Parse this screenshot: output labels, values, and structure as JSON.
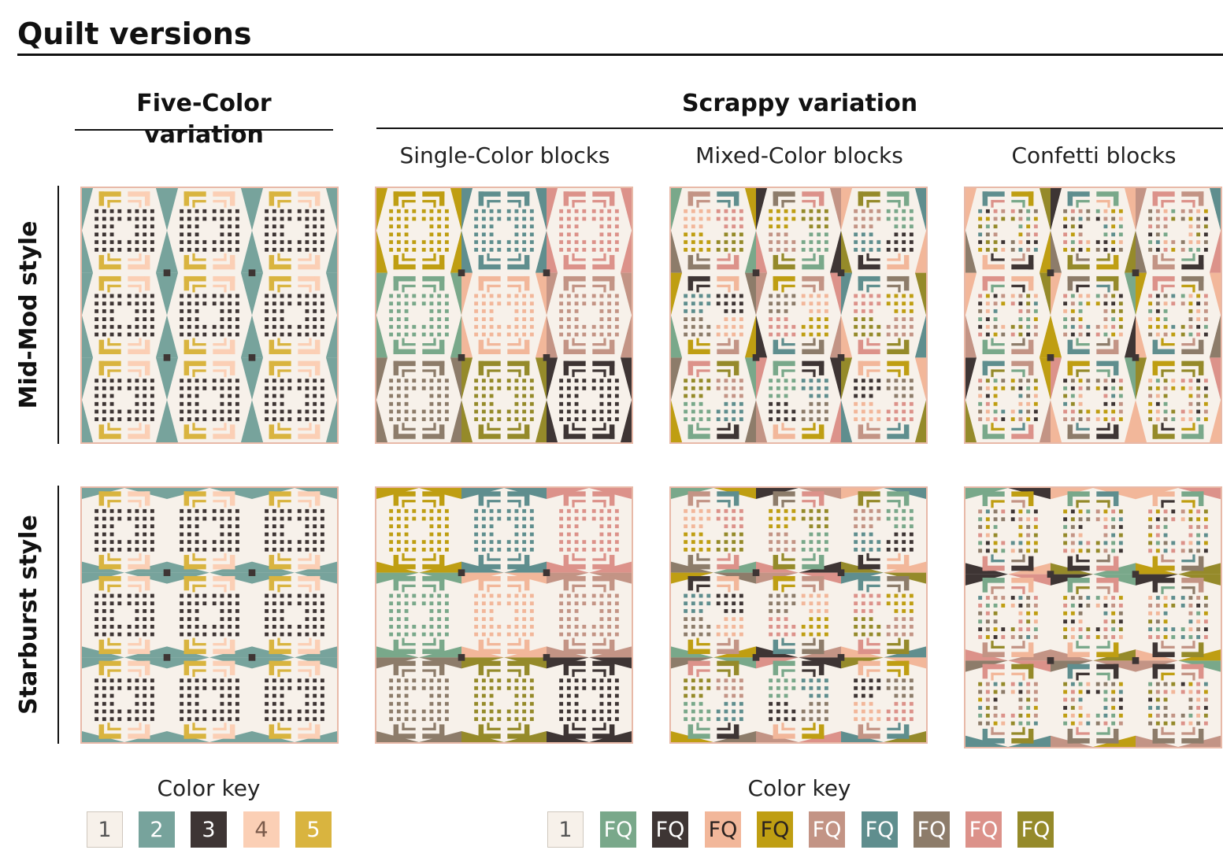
{
  "page": {
    "title": "Quilt versions",
    "columns": {
      "five_color": "Five-Color variation",
      "scrappy": "Scrappy variation",
      "single_color": "Single-Color blocks",
      "mixed_color": "Mixed-Color blocks",
      "confetti": "Confetti blocks"
    },
    "rows": {
      "midmod": "Mid-Mod style",
      "starburst": "Starburst style"
    }
  },
  "quilts": [
    {
      "row": "midmod",
      "col": "five_color",
      "style": "midmod",
      "scheme": "five"
    },
    {
      "row": "midmod",
      "col": "single_color",
      "style": "midmod",
      "scheme": "single"
    },
    {
      "row": "midmod",
      "col": "mixed_color",
      "style": "midmod",
      "scheme": "mixed"
    },
    {
      "row": "midmod",
      "col": "confetti",
      "style": "midmod",
      "scheme": "confetti"
    },
    {
      "row": "starburst",
      "col": "five_color",
      "style": "starburst",
      "scheme": "five"
    },
    {
      "row": "starburst",
      "col": "single_color",
      "style": "starburst",
      "scheme": "single"
    },
    {
      "row": "starburst",
      "col": "mixed_color",
      "style": "starburst",
      "scheme": "mixed"
    },
    {
      "row": "starburst",
      "col": "confetti",
      "style": "starburst",
      "scheme": "confetti"
    }
  ],
  "colors": {
    "background": "#f7f1ea",
    "border": "#e8b9a8",
    "five": [
      "#f7f1ea",
      "#77a39c",
      "#3e3534",
      "#fbcfb5",
      "#d9b43f"
    ],
    "scrappy": [
      "#79a88a",
      "#3e3534",
      "#f2b79a",
      "#bf9e12",
      "#c39485",
      "#5f8e8e",
      "#8d7c6a",
      "#dc928a",
      "#958a2a"
    ]
  },
  "color_key_five": {
    "title": "Color key",
    "labels": [
      "1",
      "2",
      "3",
      "4",
      "5"
    ]
  },
  "color_key_scrappy": {
    "title": "Color key",
    "labels": [
      "1",
      "FQ",
      "FQ",
      "FQ",
      "FQ",
      "FQ",
      "FQ",
      "FQ",
      "FQ",
      "FQ"
    ]
  }
}
